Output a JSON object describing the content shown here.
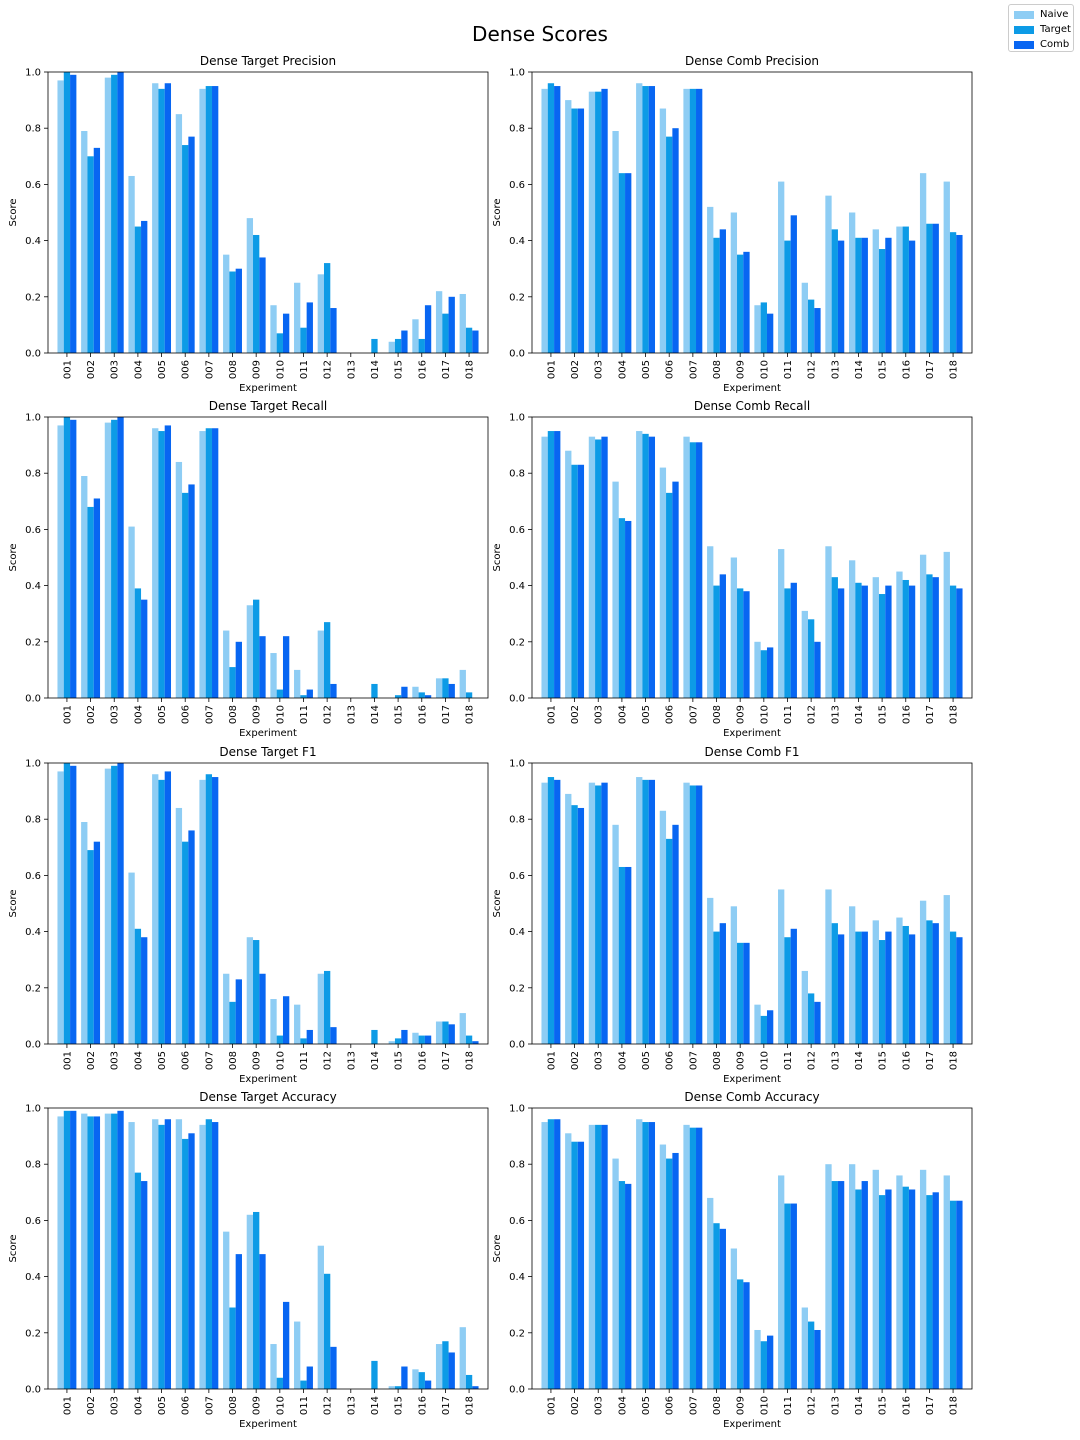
{
  "figure": {
    "title": "Dense Scores"
  },
  "colors": {
    "Naive": "#8ecdf4",
    "Target": "#0d9be6",
    "Comb": "#0866f2"
  },
  "legend": {
    "placement": "top-right",
    "items": [
      {
        "label": "Naive",
        "color": "#8ecdf4"
      },
      {
        "label": "Target",
        "color": "#0d9be6"
      },
      {
        "label": "Comb",
        "color": "#0866f2"
      }
    ]
  },
  "chart_data": [
    {
      "type": "bar",
      "title": "Dense Target Precision",
      "xlabel": "Experiment",
      "ylabel": "Score",
      "ylim": [
        0,
        1
      ],
      "yticks": [
        "0.0",
        "0.2",
        "0.4",
        "0.6",
        "0.8",
        "1.0"
      ],
      "categories": [
        "001",
        "002",
        "003",
        "004",
        "005",
        "006",
        "007",
        "008",
        "009",
        "010",
        "011",
        "012",
        "013",
        "014",
        "015",
        "016",
        "017",
        "018"
      ],
      "series": [
        {
          "name": "Naive",
          "values": [
            0.97,
            0.79,
            0.98,
            0.63,
            0.96,
            0.85,
            0.94,
            0.35,
            0.48,
            0.17,
            0.25,
            0.28,
            0.0,
            0.0,
            0.04,
            0.12,
            0.22,
            0.21
          ]
        },
        {
          "name": "Target",
          "values": [
            1.0,
            0.7,
            0.99,
            0.45,
            0.94,
            0.74,
            0.95,
            0.29,
            0.42,
            0.07,
            0.09,
            0.32,
            0.0,
            0.05,
            0.05,
            0.05,
            0.14,
            0.09
          ]
        },
        {
          "name": "Comb",
          "values": [
            0.99,
            0.73,
            1.0,
            0.47,
            0.96,
            0.77,
            0.95,
            0.3,
            0.34,
            0.14,
            0.18,
            0.16,
            0.0,
            0.0,
            0.08,
            0.17,
            0.2,
            0.08
          ]
        }
      ]
    },
    {
      "type": "bar",
      "title": "Dense Comb Precision",
      "xlabel": "Experiment",
      "ylabel": "Score",
      "ylim": [
        0,
        1
      ],
      "yticks": [
        "0.0",
        "0.2",
        "0.4",
        "0.6",
        "0.8",
        "1.0"
      ],
      "categories": [
        "001",
        "002",
        "003",
        "004",
        "005",
        "006",
        "007",
        "008",
        "009",
        "010",
        "011",
        "012",
        "013",
        "014",
        "015",
        "016",
        "017",
        "018"
      ],
      "series": [
        {
          "name": "Naive",
          "values": [
            0.94,
            0.9,
            0.93,
            0.79,
            0.96,
            0.87,
            0.94,
            0.52,
            0.5,
            0.17,
            0.61,
            0.25,
            0.56,
            0.5,
            0.44,
            0.45,
            0.64,
            0.61
          ]
        },
        {
          "name": "Target",
          "values": [
            0.96,
            0.87,
            0.93,
            0.64,
            0.95,
            0.77,
            0.94,
            0.41,
            0.35,
            0.18,
            0.4,
            0.19,
            0.44,
            0.41,
            0.37,
            0.45,
            0.46,
            0.43
          ]
        },
        {
          "name": "Comb",
          "values": [
            0.95,
            0.87,
            0.94,
            0.64,
            0.95,
            0.8,
            0.94,
            0.44,
            0.36,
            0.14,
            0.49,
            0.16,
            0.4,
            0.41,
            0.41,
            0.4,
            0.46,
            0.42
          ]
        }
      ]
    },
    {
      "type": "bar",
      "title": "Dense Target Recall",
      "xlabel": "Experiment",
      "ylabel": "Score",
      "ylim": [
        0,
        1
      ],
      "yticks": [
        "0.0",
        "0.2",
        "0.4",
        "0.6",
        "0.8",
        "1.0"
      ],
      "categories": [
        "001",
        "002",
        "003",
        "004",
        "005",
        "006",
        "007",
        "008",
        "009",
        "010",
        "011",
        "012",
        "013",
        "014",
        "015",
        "016",
        "017",
        "018"
      ],
      "series": [
        {
          "name": "Naive",
          "values": [
            0.97,
            0.79,
            0.98,
            0.61,
            0.96,
            0.84,
            0.95,
            0.24,
            0.33,
            0.16,
            0.1,
            0.24,
            0.0,
            0.0,
            0.0,
            0.04,
            0.07,
            0.1
          ]
        },
        {
          "name": "Target",
          "values": [
            1.0,
            0.68,
            0.99,
            0.39,
            0.95,
            0.73,
            0.96,
            0.11,
            0.35,
            0.03,
            0.01,
            0.27,
            0.0,
            0.05,
            0.01,
            0.02,
            0.07,
            0.02
          ]
        },
        {
          "name": "Comb",
          "values": [
            0.99,
            0.71,
            1.0,
            0.35,
            0.97,
            0.76,
            0.96,
            0.2,
            0.22,
            0.22,
            0.03,
            0.05,
            0.0,
            0.0,
            0.04,
            0.01,
            0.05,
            0.0
          ]
        }
      ]
    },
    {
      "type": "bar",
      "title": "Dense Comb Recall",
      "xlabel": "Experiment",
      "ylabel": "Score",
      "ylim": [
        0,
        1
      ],
      "yticks": [
        "0.0",
        "0.2",
        "0.4",
        "0.6",
        "0.8",
        "1.0"
      ],
      "categories": [
        "001",
        "002",
        "003",
        "004",
        "005",
        "006",
        "007",
        "008",
        "009",
        "010",
        "011",
        "012",
        "013",
        "014",
        "015",
        "016",
        "017",
        "018"
      ],
      "series": [
        {
          "name": "Naive",
          "values": [
            0.93,
            0.88,
            0.93,
            0.77,
            0.95,
            0.82,
            0.93,
            0.54,
            0.5,
            0.2,
            0.53,
            0.31,
            0.54,
            0.49,
            0.43,
            0.45,
            0.51,
            0.52
          ]
        },
        {
          "name": "Target",
          "values": [
            0.95,
            0.83,
            0.92,
            0.64,
            0.94,
            0.73,
            0.91,
            0.4,
            0.39,
            0.17,
            0.39,
            0.28,
            0.43,
            0.41,
            0.37,
            0.42,
            0.44,
            0.4
          ]
        },
        {
          "name": "Comb",
          "values": [
            0.95,
            0.83,
            0.93,
            0.63,
            0.93,
            0.77,
            0.91,
            0.44,
            0.38,
            0.18,
            0.41,
            0.2,
            0.39,
            0.4,
            0.4,
            0.4,
            0.43,
            0.39
          ]
        }
      ]
    },
    {
      "type": "bar",
      "title": "Dense Target F1",
      "xlabel": "Experiment",
      "ylabel": "Score",
      "ylim": [
        0,
        1
      ],
      "yticks": [
        "0.0",
        "0.2",
        "0.4",
        "0.6",
        "0.8",
        "1.0"
      ],
      "categories": [
        "001",
        "002",
        "003",
        "004",
        "005",
        "006",
        "007",
        "008",
        "009",
        "010",
        "011",
        "012",
        "013",
        "014",
        "015",
        "016",
        "017",
        "018"
      ],
      "series": [
        {
          "name": "Naive",
          "values": [
            0.97,
            0.79,
            0.98,
            0.61,
            0.96,
            0.84,
            0.94,
            0.25,
            0.38,
            0.16,
            0.14,
            0.25,
            0.0,
            0.0,
            0.01,
            0.04,
            0.08,
            0.11
          ]
        },
        {
          "name": "Target",
          "values": [
            1.0,
            0.69,
            0.99,
            0.41,
            0.94,
            0.72,
            0.96,
            0.15,
            0.37,
            0.03,
            0.02,
            0.26,
            0.0,
            0.05,
            0.02,
            0.03,
            0.08,
            0.03
          ]
        },
        {
          "name": "Comb",
          "values": [
            0.99,
            0.72,
            1.0,
            0.38,
            0.97,
            0.76,
            0.95,
            0.23,
            0.25,
            0.17,
            0.05,
            0.06,
            0.0,
            0.0,
            0.05,
            0.03,
            0.07,
            0.01
          ]
        }
      ]
    },
    {
      "type": "bar",
      "title": "Dense Comb F1",
      "xlabel": "Experiment",
      "ylabel": "Score",
      "ylim": [
        0,
        1
      ],
      "yticks": [
        "0.0",
        "0.2",
        "0.4",
        "0.6",
        "0.8",
        "1.0"
      ],
      "categories": [
        "001",
        "002",
        "003",
        "004",
        "005",
        "006",
        "007",
        "008",
        "009",
        "010",
        "011",
        "012",
        "013",
        "014",
        "015",
        "016",
        "017",
        "018"
      ],
      "series": [
        {
          "name": "Naive",
          "values": [
            0.93,
            0.89,
            0.93,
            0.78,
            0.95,
            0.83,
            0.93,
            0.52,
            0.49,
            0.14,
            0.55,
            0.26,
            0.55,
            0.49,
            0.44,
            0.45,
            0.51,
            0.53
          ]
        },
        {
          "name": "Target",
          "values": [
            0.95,
            0.85,
            0.92,
            0.63,
            0.94,
            0.73,
            0.92,
            0.4,
            0.36,
            0.1,
            0.38,
            0.18,
            0.43,
            0.4,
            0.37,
            0.42,
            0.44,
            0.4
          ]
        },
        {
          "name": "Comb",
          "values": [
            0.94,
            0.84,
            0.93,
            0.63,
            0.94,
            0.78,
            0.92,
            0.43,
            0.36,
            0.12,
            0.41,
            0.15,
            0.39,
            0.4,
            0.4,
            0.39,
            0.43,
            0.38
          ]
        }
      ]
    },
    {
      "type": "bar",
      "title": "Dense Target Accuracy",
      "xlabel": "Experiment",
      "ylabel": "Score",
      "ylim": [
        0,
        1
      ],
      "yticks": [
        "0.0",
        "0.2",
        "0.4",
        "0.6",
        "0.8",
        "1.0"
      ],
      "categories": [
        "001",
        "002",
        "003",
        "004",
        "005",
        "006",
        "007",
        "008",
        "009",
        "010",
        "011",
        "012",
        "013",
        "014",
        "015",
        "016",
        "017",
        "018"
      ],
      "series": [
        {
          "name": "Naive",
          "values": [
            0.97,
            0.98,
            0.98,
            0.95,
            0.96,
            0.96,
            0.94,
            0.56,
            0.62,
            0.16,
            0.24,
            0.51,
            0.0,
            0.0,
            0.01,
            0.07,
            0.16,
            0.22
          ]
        },
        {
          "name": "Target",
          "values": [
            0.99,
            0.97,
            0.98,
            0.77,
            0.94,
            0.89,
            0.96,
            0.29,
            0.63,
            0.04,
            0.03,
            0.41,
            0.0,
            0.1,
            0.01,
            0.06,
            0.17,
            0.05
          ]
        },
        {
          "name": "Comb",
          "values": [
            0.99,
            0.97,
            0.99,
            0.74,
            0.96,
            0.91,
            0.95,
            0.48,
            0.48,
            0.31,
            0.08,
            0.15,
            0.0,
            0.0,
            0.08,
            0.03,
            0.13,
            0.01
          ]
        }
      ]
    },
    {
      "type": "bar",
      "title": "Dense Comb Accuracy",
      "xlabel": "Experiment",
      "ylabel": "Score",
      "ylim": [
        0,
        1
      ],
      "yticks": [
        "0.0",
        "0.2",
        "0.4",
        "0.6",
        "0.8",
        "1.0"
      ],
      "categories": [
        "001",
        "002",
        "003",
        "004",
        "005",
        "006",
        "007",
        "008",
        "009",
        "010",
        "011",
        "012",
        "013",
        "014",
        "015",
        "016",
        "017",
        "018"
      ],
      "series": [
        {
          "name": "Naive",
          "values": [
            0.95,
            0.91,
            0.94,
            0.82,
            0.96,
            0.87,
            0.94,
            0.68,
            0.5,
            0.21,
            0.76,
            0.29,
            0.8,
            0.8,
            0.78,
            0.76,
            0.78,
            0.76
          ]
        },
        {
          "name": "Target",
          "values": [
            0.96,
            0.88,
            0.94,
            0.74,
            0.95,
            0.82,
            0.93,
            0.59,
            0.39,
            0.17,
            0.66,
            0.24,
            0.74,
            0.71,
            0.69,
            0.72,
            0.69,
            0.67
          ]
        },
        {
          "name": "Comb",
          "values": [
            0.96,
            0.88,
            0.94,
            0.73,
            0.95,
            0.84,
            0.93,
            0.57,
            0.38,
            0.19,
            0.66,
            0.21,
            0.74,
            0.74,
            0.71,
            0.71,
            0.7,
            0.67
          ]
        }
      ]
    }
  ]
}
